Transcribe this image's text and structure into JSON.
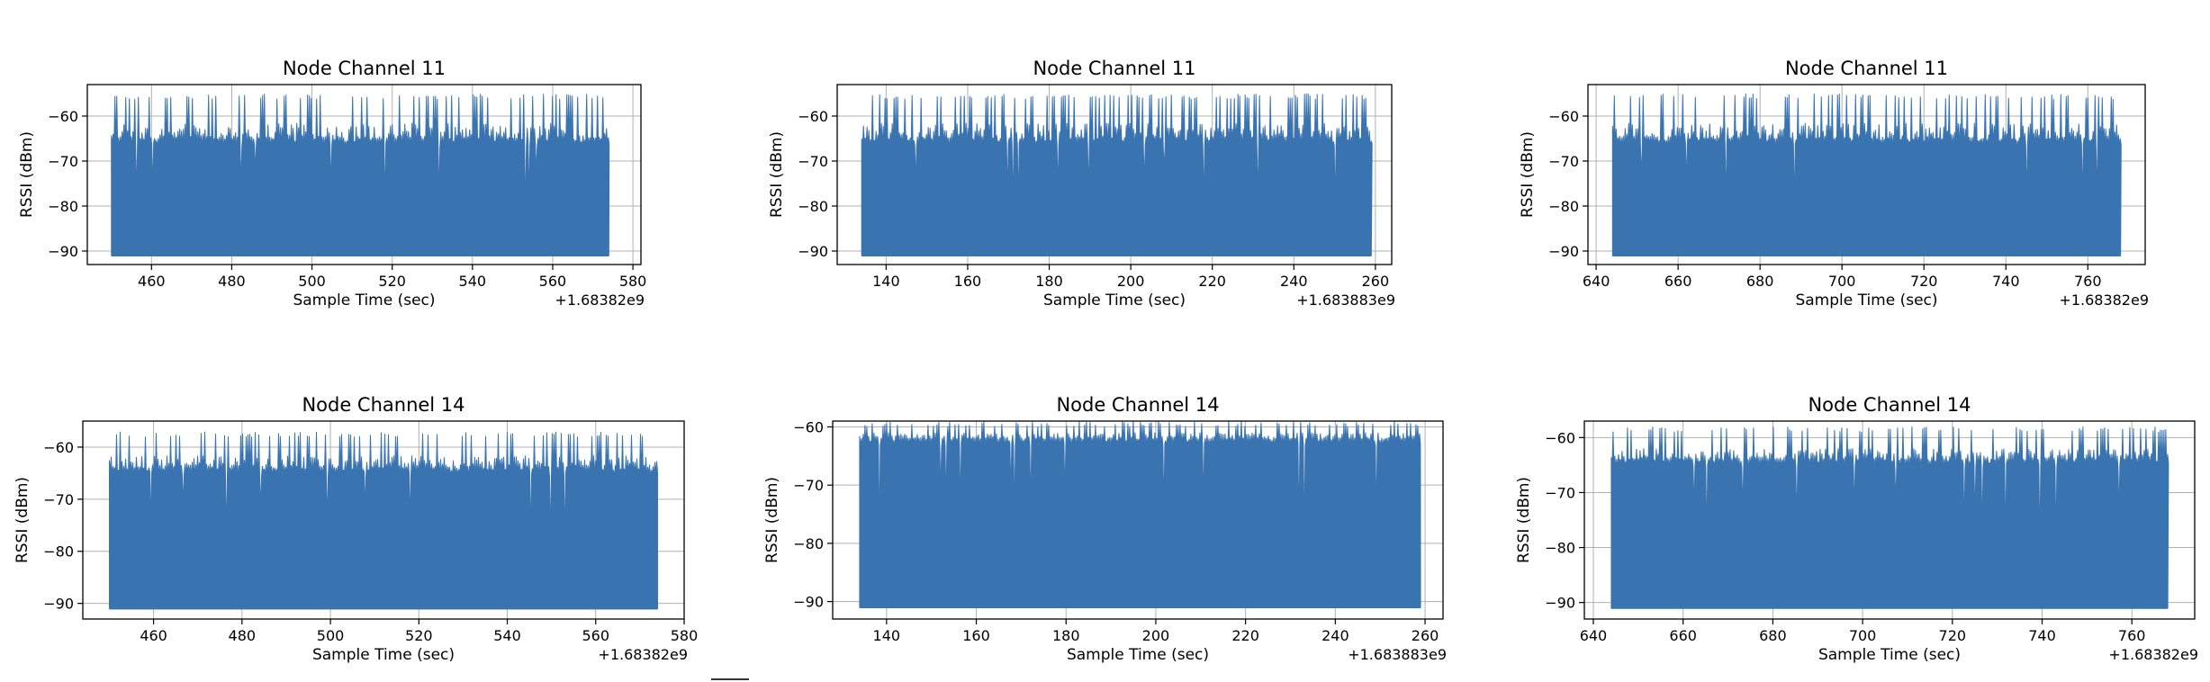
{
  "chart_data": [
    {
      "type": "line",
      "title": "Node Channel 11",
      "xlabel": "Sample Time (sec)",
      "ylabel": "RSSI (dBm)",
      "x_offset": "+1.68382e9",
      "xlim": [
        444,
        582
      ],
      "ylim": [
        -93,
        -53
      ],
      "xticks": [
        460,
        480,
        500,
        520,
        540,
        560,
        580
      ],
      "yticks": [
        -90,
        -80,
        -70,
        -60
      ],
      "grid": true,
      "color": "#3a74b0",
      "series": [
        {
          "x_start": 450,
          "x_end": 574,
          "y_floor": -91,
          "y_peak": -55,
          "y_body": -65
        }
      ]
    },
    {
      "type": "line",
      "title": "Node Channel 11",
      "xlabel": "Sample Time (sec)",
      "ylabel": "RSSI (dBm)",
      "x_offset": "+1.683883e9",
      "xlim": [
        128,
        264
      ],
      "ylim": [
        -93,
        -53
      ],
      "xticks": [
        140,
        160,
        180,
        200,
        220,
        240,
        260
      ],
      "yticks": [
        -90,
        -80,
        -70,
        -60
      ],
      "grid": true,
      "color": "#3a74b0",
      "series": [
        {
          "x_start": 134,
          "x_end": 259,
          "y_floor": -91,
          "y_peak": -55,
          "y_body": -65
        }
      ]
    },
    {
      "type": "line",
      "title": "Node Channel 11",
      "xlabel": "Sample Time (sec)",
      "ylabel": "RSSI (dBm)",
      "x_offset": "+1.68382e9",
      "xlim": [
        638,
        774
      ],
      "ylim": [
        -93,
        -53
      ],
      "xticks": [
        640,
        660,
        680,
        700,
        720,
        740,
        760
      ],
      "yticks": [
        -90,
        -80,
        -70,
        -60
      ],
      "grid": true,
      "color": "#3a74b0",
      "series": [
        {
          "x_start": 644,
          "x_end": 768,
          "y_floor": -91,
          "y_peak": -55,
          "y_body": -65
        }
      ]
    },
    {
      "type": "line",
      "title": "Node Channel 14",
      "xlabel": "Sample Time (sec)",
      "ylabel": "RSSI (dBm)",
      "x_offset": "+1.68382e9",
      "xlim": [
        444,
        580
      ],
      "ylim": [
        -93,
        -55
      ],
      "xticks": [
        460,
        480,
        500,
        520,
        540,
        560,
        580
      ],
      "yticks": [
        -90,
        -80,
        -70,
        -60
      ],
      "grid": true,
      "color": "#3a74b0",
      "series": [
        {
          "x_start": 450,
          "x_end": 574,
          "y_floor": -91,
          "y_peak": -57,
          "y_body": -64
        }
      ]
    },
    {
      "type": "line",
      "title": "Node Channel 14",
      "xlabel": "Sample Time (sec)",
      "ylabel": "RSSI (dBm)",
      "x_offset": "+1.683883e9",
      "xlim": [
        128,
        264
      ],
      "ylim": [
        -93,
        -59
      ],
      "xticks": [
        140,
        160,
        180,
        200,
        220,
        240,
        260
      ],
      "yticks": [
        -90,
        -80,
        -70,
        -60
      ],
      "grid": true,
      "color": "#3a74b0",
      "series": [
        {
          "x_start": 134,
          "x_end": 259,
          "y_floor": -91,
          "y_peak": -59,
          "y_body": -62
        }
      ]
    },
    {
      "type": "line",
      "title": "Node Channel 14",
      "xlabel": "Sample Time (sec)",
      "ylabel": "RSSI (dBm)",
      "x_offset": "+1.68382e9",
      "xlim": [
        638,
        774
      ],
      "ylim": [
        -93,
        -57
      ],
      "xticks": [
        640,
        660,
        680,
        700,
        720,
        740,
        760
      ],
      "yticks": [
        -90,
        -80,
        -70,
        -60
      ],
      "grid": true,
      "color": "#3a74b0",
      "series": [
        {
          "x_start": 644,
          "x_end": 768,
          "y_floor": -91,
          "y_peak": -58,
          "y_body": -64
        }
      ]
    }
  ]
}
